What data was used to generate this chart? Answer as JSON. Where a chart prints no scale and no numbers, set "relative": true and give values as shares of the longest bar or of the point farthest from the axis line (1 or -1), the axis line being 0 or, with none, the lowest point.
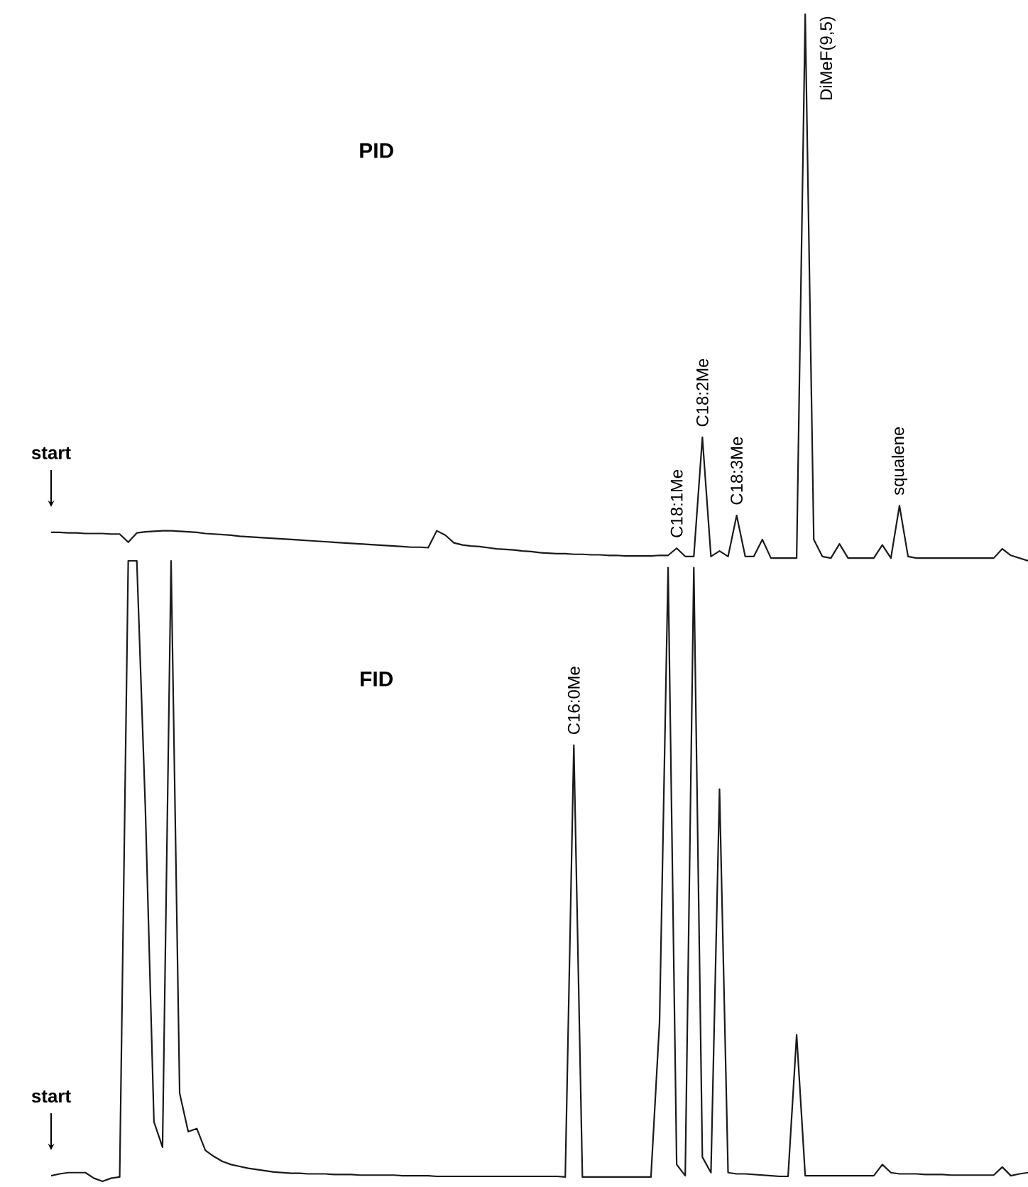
{
  "chart_data": [
    {
      "type": "line",
      "title": "PID",
      "relative": true,
      "tick_labels": false,
      "color": "#1a1a1a",
      "categories": [
        null,
        null,
        null,
        null,
        null,
        null,
        null,
        null,
        null,
        null,
        null,
        null,
        null,
        null,
        null,
        null,
        null,
        null,
        null,
        null,
        null,
        null,
        null,
        null,
        null,
        null,
        null,
        null,
        null,
        null,
        null,
        null,
        null,
        null,
        null,
        null,
        null,
        null,
        null,
        null,
        null,
        null,
        null,
        null,
        null,
        null,
        null,
        null,
        null,
        null,
        null,
        null,
        null,
        null,
        null,
        null,
        null,
        null,
        null,
        null,
        null,
        null,
        null,
        null,
        null,
        null,
        null,
        null,
        null,
        null,
        null,
        null,
        null,
        null,
        null,
        null,
        null,
        null,
        null,
        null,
        null,
        null,
        null,
        null,
        null,
        null,
        null,
        null,
        null,
        null,
        null,
        null,
        null,
        null,
        null,
        null,
        null,
        null,
        null,
        null,
        null,
        null,
        null,
        null,
        null,
        null,
        null,
        null,
        null,
        null,
        null,
        null,
        null,
        null,
        null
      ],
      "values": [
        0.052,
        0.052,
        0.051,
        0.051,
        0.05,
        0.05,
        0.05,
        0.049,
        0.049,
        0.034,
        0.051,
        0.053,
        0.054,
        0.055,
        0.055,
        0.054,
        0.053,
        0.052,
        0.05,
        0.049,
        0.048,
        0.047,
        0.045,
        0.044,
        0.043,
        0.042,
        0.041,
        0.04,
        0.039,
        0.038,
        0.037,
        0.036,
        0.035,
        0.034,
        0.033,
        0.032,
        0.031,
        0.03,
        0.029,
        0.028,
        0.027,
        0.026,
        0.025,
        0.025,
        0.024,
        0.055,
        0.047,
        0.033,
        0.029,
        0.027,
        0.026,
        0.024,
        0.022,
        0.021,
        0.02,
        0.018,
        0.017,
        0.015,
        0.014,
        0.013,
        0.013,
        0.012,
        0.012,
        0.011,
        0.011,
        0.01,
        0.01,
        0.009,
        0.009,
        0.009,
        0.009,
        0.01,
        0.01,
        0.023,
        0.008,
        0.008,
        0.226,
        0.008,
        0.018,
        0.008,
        0.083,
        0.008,
        0.008,
        0.039,
        0.005,
        0.005,
        0.005,
        0.005,
        1,
        0.039,
        0.008,
        0.005,
        0.031,
        0.005,
        0.005,
        0.005,
        0.005,
        0.029,
        0.005,
        0.101,
        0.008,
        0.005,
        0.005,
        0.005,
        0.005,
        0.005,
        0.005,
        0.005,
        0.005,
        0.005,
        0.005,
        0.022,
        0.01,
        0.005,
        0
      ],
      "annotations": [
        "start",
        {
          "text": "C18:1Me",
          "y": 0.023
        },
        {
          "text": "C18:2Me",
          "y": 0.226
        },
        {
          "text": "C18:3Me",
          "y": 0.083
        },
        {
          "text": "DiMeF(9,5)"
        },
        {
          "text": "squalene",
          "y": 0.101
        }
      ]
    },
    {
      "type": "line",
      "title": "FID",
      "relative": true,
      "tick_labels": false,
      "color": "#1a1a1a",
      "categories": [
        null,
        null,
        null,
        null,
        null,
        null,
        null,
        null,
        null,
        null,
        null,
        null,
        null,
        null,
        null,
        null,
        null,
        null,
        null,
        null,
        null,
        null,
        null,
        null,
        null,
        null,
        null,
        null,
        null,
        null,
        null,
        null,
        null,
        null,
        null,
        null,
        null,
        null,
        null,
        null,
        null,
        null,
        null,
        null,
        null,
        null,
        null,
        null,
        null,
        null,
        null,
        null,
        null,
        null,
        null,
        null,
        null,
        null,
        null,
        null,
        null,
        null,
        null,
        null,
        null,
        null,
        null,
        null,
        null,
        null,
        null,
        null,
        null,
        null,
        null,
        null,
        null,
        null,
        null,
        null,
        null,
        null,
        null,
        null,
        null,
        null,
        null,
        null,
        null,
        null,
        null,
        null,
        null,
        null,
        null,
        null,
        null,
        null,
        null,
        null,
        null,
        null,
        null,
        null,
        null,
        null,
        null,
        null,
        null,
        null,
        null,
        null,
        null,
        null,
        null
      ],
      "values": [
        0.009,
        0.012,
        0.014,
        0.014,
        0.014,
        0.005,
        0,
        0.005,
        0.007,
        1,
        1,
        0.6,
        0.096,
        0.055,
        1,
        0.142,
        0.08,
        0.085,
        0.05,
        0.04,
        0.032,
        0.027,
        0.024,
        0.021,
        0.019,
        0.017,
        0.015,
        0.014,
        0.013,
        0.013,
        0.012,
        0.012,
        0.012,
        0.011,
        0.011,
        0.011,
        0.01,
        0.01,
        0.01,
        0.01,
        0.01,
        0.009,
        0.009,
        0.009,
        0.009,
        0.008,
        0.008,
        0.008,
        0.008,
        0.008,
        0.008,
        0.008,
        0.008,
        0.008,
        0.008,
        0.008,
        0.008,
        0.008,
        0.008,
        0.008,
        0.007,
        0.703,
        0.007,
        0.007,
        0.007,
        0.007,
        0.007,
        0.007,
        0.007,
        0.007,
        0.007,
        0.256,
        0.989,
        0.027,
        0.009,
        0.989,
        0.039,
        0.014,
        0.632,
        0.014,
        0.012,
        0.012,
        0.011,
        0.01,
        0.009,
        0.008,
        0.008,
        0.236,
        0.009,
        0.009,
        0.009,
        0.009,
        0.009,
        0.009,
        0.009,
        0.009,
        0.009,
        0.027,
        0.014,
        0.012,
        0.012,
        0.012,
        0.011,
        0.011,
        0.011,
        0.01,
        0.01,
        0.01,
        0.01,
        0.01,
        0.01,
        0.023,
        0.009,
        0.012,
        0.014
      ],
      "annotations": [
        "start",
        {
          "text": "C16:0Me",
          "y": 0.703
        }
      ]
    }
  ]
}
